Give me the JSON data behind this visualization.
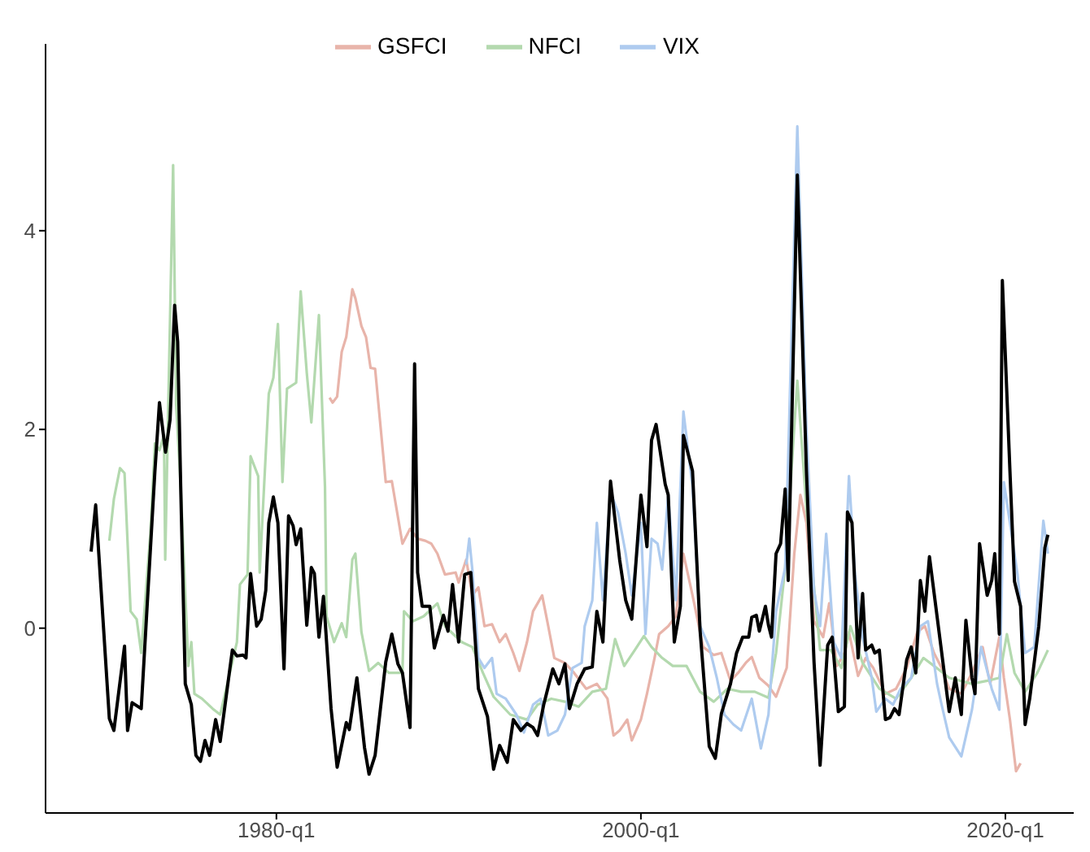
{
  "chart_data": {
    "type": "line",
    "xlim": [
      "1967-05",
      "2023-10"
    ],
    "ylim": [
      -1.86,
      5.88
    ],
    "xticks": [
      {
        "value": "1980-01",
        "label": "1980-q1"
      },
      {
        "value": "2000-01",
        "label": "2000-q1"
      },
      {
        "value": "2020-01",
        "label": "2020-q1"
      }
    ],
    "yticks": [
      0,
      2,
      4
    ],
    "grid": false,
    "legend": "top",
    "marker": "none",
    "line_style": "solid",
    "series": [
      {
        "name": "GSFCI",
        "color": "#e8b4aa",
        "x": [
          "1982-12",
          "1983-02",
          "1983-05",
          "1983-08",
          "1983-11",
          "1984-03",
          "1984-05",
          "1984-09",
          "1984-12",
          "1985-03",
          "1985-06",
          "1986-01",
          "1986-05",
          "1986-12",
          "1987-05",
          "1987-10",
          "1988-03",
          "1988-07",
          "1988-11",
          "1989-04",
          "1989-11",
          "1990-01",
          "1990-06",
          "1990-10",
          "1991-02",
          "1991-06",
          "1991-11",
          "1992-04",
          "1992-08",
          "1993-01",
          "1993-05",
          "1993-10",
          "1994-02",
          "1994-08",
          "1994-12",
          "1995-04",
          "1995-11",
          "1996-05",
          "1997-01",
          "1997-08",
          "1998-03",
          "1998-07",
          "1998-11",
          "1999-04",
          "1999-07",
          "2000-01",
          "2000-05",
          "2000-10",
          "2001-01",
          "2001-07",
          "2001-12",
          "2002-05",
          "2002-11",
          "2003-06",
          "2004-01",
          "2004-06",
          "2004-12",
          "2005-05",
          "2005-10",
          "2006-02",
          "2006-07",
          "2007-01",
          "2007-06",
          "2008-01",
          "2008-06",
          "2008-10",
          "2009-02",
          "2009-07",
          "2010-01",
          "2010-05",
          "2010-10",
          "2011-03",
          "2011-06",
          "2011-12",
          "2012-05",
          "2012-10",
          "2013-06",
          "2014-01",
          "2014-08",
          "2015-03",
          "2015-08",
          "2016-02",
          "2016-07",
          "2016-12",
          "2017-08",
          "2018-03",
          "2018-10",
          "2019-03",
          "2019-09",
          "2019-12",
          "2020-04",
          "2020-08",
          "2020-11"
        ],
        "values": [
          2.32,
          2.27,
          2.33,
          2.78,
          2.93,
          3.41,
          3.32,
          3.04,
          2.93,
          2.62,
          2.61,
          1.47,
          1.48,
          0.85,
          1.0,
          0.9,
          0.88,
          0.85,
          0.75,
          0.54,
          0.56,
          0.46,
          0.69,
          0.33,
          0.41,
          0.02,
          0.04,
          -0.14,
          -0.06,
          -0.25,
          -0.43,
          -0.14,
          0.17,
          0.33,
          0.02,
          -0.3,
          -0.35,
          -0.45,
          -0.61,
          -0.56,
          -0.71,
          -1.08,
          -1.03,
          -0.92,
          -1.13,
          -0.92,
          -0.66,
          -0.3,
          -0.06,
          0.02,
          0.12,
          0.75,
          0.33,
          -0.19,
          -0.27,
          -0.25,
          -0.53,
          -0.45,
          -0.35,
          -0.29,
          -0.5,
          -0.58,
          -0.69,
          -0.4,
          0.75,
          1.34,
          1.06,
          0.07,
          -0.09,
          0.25,
          -0.38,
          -0.25,
          -0.04,
          -0.48,
          -0.3,
          -0.4,
          -0.66,
          -0.61,
          -0.4,
          -0.04,
          0.02,
          -0.25,
          -0.4,
          -0.61,
          -0.66,
          -0.45,
          -0.19,
          -0.56,
          -0.09,
          -0.5,
          -0.92,
          -1.44,
          -1.36
        ]
      },
      {
        "name": "NFCI",
        "color": "#b3d9ae",
        "x": [
          "1970-11",
          "1971-02",
          "1971-06",
          "1971-09",
          "1972-01",
          "1972-05",
          "1972-08",
          "1973-02",
          "1973-05",
          "1973-08",
          "1973-11-01",
          "1973-11-25",
          "1974-05",
          "1974-07",
          "1974-10",
          "1975-03",
          "1975-05",
          "1975-07",
          "1975-12",
          "1976-07",
          "1976-12",
          "1977-11",
          "1978-01",
          "1978-06",
          "1978-08",
          "1979-01",
          "1979-02",
          "1979-08",
          "1979-11",
          "1980-02",
          "1980-05",
          "1980-08",
          "1981-02",
          "1981-05",
          "1981-09",
          "1981-12",
          "1982-05",
          "1982-09",
          "1982-10",
          "1983-03",
          "1983-08",
          "1983-11",
          "1984-03",
          "1984-05",
          "1984-09",
          "1985-02",
          "1985-08",
          "1986-03",
          "1986-12",
          "1987-01",
          "1987-07",
          "1988-02",
          "1988-11",
          "1989-04",
          "1990-03",
          "1990-10",
          "1991-05",
          "1991-12",
          "1992-11",
          "1993-10",
          "1994-05",
          "1995-02",
          "1995-11",
          "1996-08",
          "1997-05",
          "1998-02",
          "1998-08",
          "1999-02",
          "1999-09",
          "2000-03",
          "2000-08",
          "2001-03",
          "2001-10",
          "2002-07",
          "2003-04",
          "2004-01",
          "2004-10",
          "2005-07",
          "2006-04",
          "2007-01",
          "2007-06",
          "2007-12",
          "2008-08",
          "2009-02",
          "2009-11",
          "2010-06",
          "2011-01",
          "2011-07",
          "2012-03",
          "2013-02",
          "2014-01",
          "2014-11",
          "2015-07",
          "2016-02",
          "2016-12",
          "2018-03",
          "2019-01",
          "2019-09",
          "2020-02",
          "2020-07",
          "2021-02",
          "2021-10",
          "2022-05"
        ],
        "values": [
          0.88,
          1.3,
          1.61,
          1.56,
          0.17,
          0.09,
          -0.25,
          0.95,
          1.86,
          1.79,
          1.94,
          0.69,
          4.66,
          2.25,
          1.42,
          -0.38,
          -0.14,
          -0.66,
          -0.71,
          -0.81,
          -0.87,
          -0.14,
          0.44,
          0.54,
          1.73,
          1.53,
          0.56,
          2.36,
          2.52,
          3.06,
          1.47,
          2.41,
          2.47,
          3.39,
          2.57,
          2.07,
          3.15,
          1.42,
          0.12,
          -0.14,
          0.05,
          -0.09,
          0.69,
          0.75,
          -0.04,
          -0.43,
          -0.35,
          -0.45,
          -0.45,
          0.17,
          0.07,
          0.12,
          0.25,
          0.02,
          -0.14,
          -0.19,
          -0.45,
          -0.69,
          -0.87,
          -0.92,
          -0.77,
          -0.71,
          -0.74,
          -0.79,
          -0.64,
          -0.61,
          -0.11,
          -0.38,
          -0.22,
          -0.08,
          -0.19,
          -0.3,
          -0.38,
          -0.38,
          -0.64,
          -0.74,
          -0.61,
          -0.64,
          -0.64,
          -0.7,
          -0.25,
          0.61,
          2.49,
          1.2,
          -0.22,
          -0.22,
          -0.4,
          0.02,
          -0.35,
          -0.61,
          -0.71,
          -0.5,
          -0.3,
          -0.38,
          -0.5,
          -0.56,
          -0.53,
          -0.5,
          -0.06,
          -0.45,
          -0.64,
          -0.45,
          -0.22
        ]
      },
      {
        "name": "VIX",
        "color": "#aecbef",
        "x": [
          "1990-06",
          "1990-08",
          "1990-10",
          "1991-02",
          "1991-06",
          "1991-11",
          "1992-02",
          "1992-08",
          "1993-03",
          "1993-08",
          "1994-02",
          "1994-07",
          "1994-12",
          "1995-06",
          "1995-11",
          "1996-04",
          "1996-10",
          "1996-12",
          "1997-05",
          "1997-08",
          "1997-12",
          "1998-05",
          "1998-10",
          "1999-03",
          "1999-07",
          "2000-01",
          "2000-04",
          "2000-08",
          "2000-12",
          "2001-03",
          "2001-07",
          "2001-12",
          "2002-05",
          "2002-11",
          "2003-04",
          "2003-10",
          "2004-03",
          "2004-08",
          "2005-02",
          "2005-07",
          "2006-02",
          "2006-08",
          "2007-01",
          "2007-06",
          "2007-12",
          "2008-08",
          "2009-02",
          "2009-07",
          "2009-11",
          "2010-03",
          "2010-08",
          "2011-01",
          "2011-06",
          "2011-10",
          "2012-03",
          "2012-09",
          "2012-12",
          "2013-06",
          "2013-11",
          "2014-04",
          "2014-11",
          "2015-05",
          "2015-10",
          "2016-04",
          "2016-07",
          "2016-12",
          "2017-08",
          "2018-03",
          "2018-09",
          "2019-04",
          "2019-09",
          "2019-12",
          "2020-04",
          "2020-09",
          "2021-02",
          "2021-08",
          "2022-02",
          "2022-05"
        ],
        "values": [
          0.64,
          0.9,
          0.59,
          -0.3,
          -0.4,
          -0.3,
          -0.66,
          -0.71,
          -0.87,
          -1.05,
          -0.77,
          -0.71,
          -1.08,
          -1.03,
          -0.87,
          -0.4,
          -0.35,
          0.02,
          0.28,
          1.06,
          0.28,
          1.37,
          1.16,
          0.75,
          0.33,
          1.06,
          -0.06,
          0.9,
          0.85,
          0.59,
          1.34,
          0.28,
          2.18,
          1.42,
          0.02,
          -0.19,
          -0.5,
          -0.87,
          -0.97,
          -1.03,
          -0.71,
          -1.21,
          -0.87,
          0.17,
          0.61,
          5.05,
          2.0,
          0.38,
          0.02,
          0.95,
          -0.14,
          -0.3,
          1.53,
          0.54,
          -0.09,
          -0.5,
          -0.84,
          -0.71,
          -0.77,
          -0.61,
          -0.5,
          0.02,
          0.07,
          -0.56,
          -0.77,
          -1.1,
          -1.29,
          -0.82,
          -0.19,
          -0.61,
          -0.82,
          1.47,
          1.06,
          0.54,
          -0.25,
          -0.19,
          1.08,
          0.75
        ]
      },
      {
        "color": "#000000",
        "x": [
          "1969-11",
          "1970-02",
          "1970-11",
          "1971-02",
          "1971-09",
          "1971-11",
          "1972-02",
          "1972-08",
          "1973-05",
          "1973-08",
          "1973-12",
          "1974-03",
          "1974-06",
          "1974-08",
          "1974-10",
          "1975-01",
          "1975-05",
          "1975-08",
          "1975-11",
          "1976-02",
          "1976-05",
          "1976-09",
          "1976-12",
          "1977-08",
          "1977-11",
          "1978-03",
          "1978-05",
          "1978-08",
          "1978-12",
          "1979-03",
          "1979-06",
          "1979-08",
          "1979-11",
          "1980-02",
          "1980-06",
          "1980-09",
          "1980-12",
          "1981-02",
          "1981-05",
          "1981-09",
          "1981-12",
          "1982-02",
          "1982-05",
          "1982-08",
          "1983-01",
          "1983-05",
          "1983-11",
          "1984-01",
          "1984-06",
          "1984-11",
          "1985-02",
          "1985-06",
          "1986-01",
          "1986-05",
          "1986-09",
          "1986-12",
          "1987-05",
          "1987-08",
          "1987-10",
          "1988-01",
          "1988-06",
          "1988-09",
          "1989-03",
          "1989-06",
          "1989-09",
          "1990-01",
          "1990-05",
          "1990-09",
          "1991-02",
          "1991-08",
          "1991-12",
          "1992-04",
          "1992-09",
          "1993-01",
          "1993-06",
          "1993-10",
          "1994-02",
          "1994-05",
          "1994-09",
          "1995-03",
          "1995-07",
          "1995-11",
          "1996-02",
          "1996-07",
          "1996-12",
          "1997-05",
          "1997-08",
          "1997-12",
          "1998-05",
          "1998-11",
          "1999-03",
          "1999-07",
          "2000-01",
          "2000-05",
          "2000-08",
          "2000-11",
          "2001-05",
          "2001-07",
          "2001-11",
          "2002-03",
          "2002-05",
          "2002-11",
          "2003-04",
          "2003-10",
          "2004-02",
          "2004-06",
          "2004-12",
          "2005-04",
          "2005-08",
          "2005-12",
          "2006-02",
          "2006-05",
          "2006-07",
          "2006-11",
          "2007-01",
          "2007-03",
          "2007-06",
          "2007-09",
          "2007-12",
          "2008-02",
          "2008-08",
          "2009-02",
          "2009-07",
          "2009-11",
          "2010-04",
          "2010-07",
          "2010-11",
          "2011-03",
          "2011-05",
          "2011-08",
          "2011-12",
          "2012-03",
          "2012-05",
          "2012-09",
          "2012-11",
          "2013-02",
          "2013-06",
          "2013-09",
          "2013-12",
          "2014-03",
          "2014-08",
          "2014-11",
          "2015-02",
          "2015-05",
          "2015-08",
          "2015-11",
          "2016-04",
          "2016-12",
          "2017-04",
          "2017-08",
          "2017-11",
          "2018-03",
          "2018-05",
          "2018-08",
          "2019-01",
          "2019-04",
          "2019-06",
          "2019-09",
          "2019-11",
          "2020-04",
          "2020-07",
          "2020-11",
          "2021-02",
          "2021-05",
          "2021-11",
          "2022-03",
          "2022-05"
        ],
        "values": [
          0.77,
          1.24,
          -0.91,
          -1.03,
          -0.18,
          -1.03,
          -0.75,
          -0.81,
          1.58,
          2.27,
          1.77,
          2.1,
          3.25,
          2.88,
          1.42,
          -0.56,
          -0.77,
          -1.28,
          -1.34,
          -1.13,
          -1.28,
          -0.92,
          -1.14,
          -0.22,
          -0.28,
          -0.27,
          -0.3,
          0.55,
          0.02,
          0.09,
          0.38,
          1.06,
          1.32,
          1.06,
          -0.41,
          1.13,
          1.03,
          0.84,
          1.0,
          0.03,
          0.61,
          0.55,
          -0.09,
          0.32,
          -0.81,
          -1.4,
          -0.95,
          -1.02,
          -0.5,
          -1.2,
          -1.47,
          -1.28,
          -0.34,
          -0.06,
          -0.36,
          -0.45,
          -1.0,
          2.66,
          0.56,
          0.22,
          0.22,
          -0.2,
          0.13,
          -0.03,
          0.44,
          -0.14,
          0.54,
          0.56,
          -0.61,
          -0.89,
          -1.42,
          -1.18,
          -1.35,
          -0.92,
          -1.03,
          -0.96,
          -1.0,
          -1.08,
          -0.77,
          -0.41,
          -0.56,
          -0.36,
          -0.81,
          -0.56,
          -0.41,
          -0.39,
          0.17,
          -0.14,
          1.48,
          0.69,
          0.28,
          0.09,
          1.34,
          0.82,
          1.89,
          2.05,
          1.45,
          1.34,
          -0.14,
          0.22,
          1.94,
          1.58,
          -0.03,
          -1.19,
          -1.31,
          -0.86,
          -0.56,
          -0.25,
          -0.09,
          -0.09,
          0.11,
          0.13,
          -0.03,
          0.22,
          0.03,
          -0.09,
          0.75,
          0.85,
          1.4,
          0.48,
          4.56,
          1.58,
          -0.34,
          -1.38,
          -0.17,
          -0.09,
          -0.84,
          -0.79,
          1.17,
          1.06,
          -0.3,
          0.35,
          -0.22,
          -0.17,
          -0.25,
          -0.22,
          -0.92,
          -0.9,
          -0.81,
          -0.87,
          -0.32,
          -0.19,
          -0.45,
          0.48,
          0.17,
          0.72,
          0.12,
          -0.84,
          -0.5,
          -0.87,
          0.08,
          -0.5,
          -0.66,
          0.85,
          0.33,
          0.48,
          0.75,
          -0.06,
          3.5,
          1.58,
          0.47,
          0.22,
          -0.97,
          -0.71,
          0.02,
          0.81,
          0.94
        ]
      }
    ]
  }
}
